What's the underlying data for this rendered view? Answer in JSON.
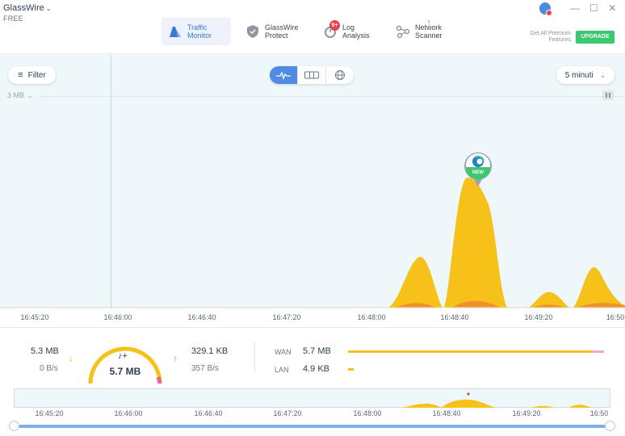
{
  "app": {
    "name": "GlassWire",
    "tier": "FREE"
  },
  "nav": [
    {
      "label1": "Traffic",
      "label2": "Monitor",
      "icon": "traffic-monitor-icon",
      "active": true
    },
    {
      "label1": "GlassWire",
      "label2": "Protect",
      "icon": "shield-icon",
      "active": false
    },
    {
      "label1": "Log",
      "label2": "Analysis",
      "icon": "log-analysis-icon",
      "active": false,
      "badge": "9+"
    },
    {
      "label1": "Network",
      "label2": "Scanner",
      "icon": "network-scanner-icon",
      "active": false,
      "mark": "!"
    }
  ],
  "premium": {
    "line1": "Get All Premium",
    "line2": "Features",
    "button": "UPGRADE"
  },
  "graph": {
    "filter_label": "Filter",
    "period_label": "5 minuti",
    "scale_label": "3 MB",
    "app_badge": "NEW"
  },
  "chart_data": {
    "type": "area",
    "x_ticks": [
      "16:45:20",
      "16:46:00",
      "16:46:40",
      "16:47:20",
      "16:48:00",
      "16:48:40",
      "16:49:20",
      "16:50"
    ],
    "ylim_label": "3 MB"
  },
  "stats": {
    "download_total": "5.3 MB",
    "download_rate": "0 B/s",
    "total": "5.7 MB",
    "upload_total": "329.1 KB",
    "upload_rate": "357 B/s",
    "wan_label": "WAN",
    "wan_value": "5.7 MB",
    "lan_label": "LAN",
    "lan_value": "4.9 KB"
  },
  "timeline": {
    "ticks": [
      "16:45:20",
      "16:46:00",
      "16:46:40",
      "16:47:20",
      "16:48:00",
      "16:48:40",
      "16:49:20",
      "16:50"
    ]
  },
  "colors": {
    "accent": "#4f8be3",
    "download": "#f6c21a",
    "upload": "#e86a8a",
    "upgrade": "#3cc86e"
  }
}
